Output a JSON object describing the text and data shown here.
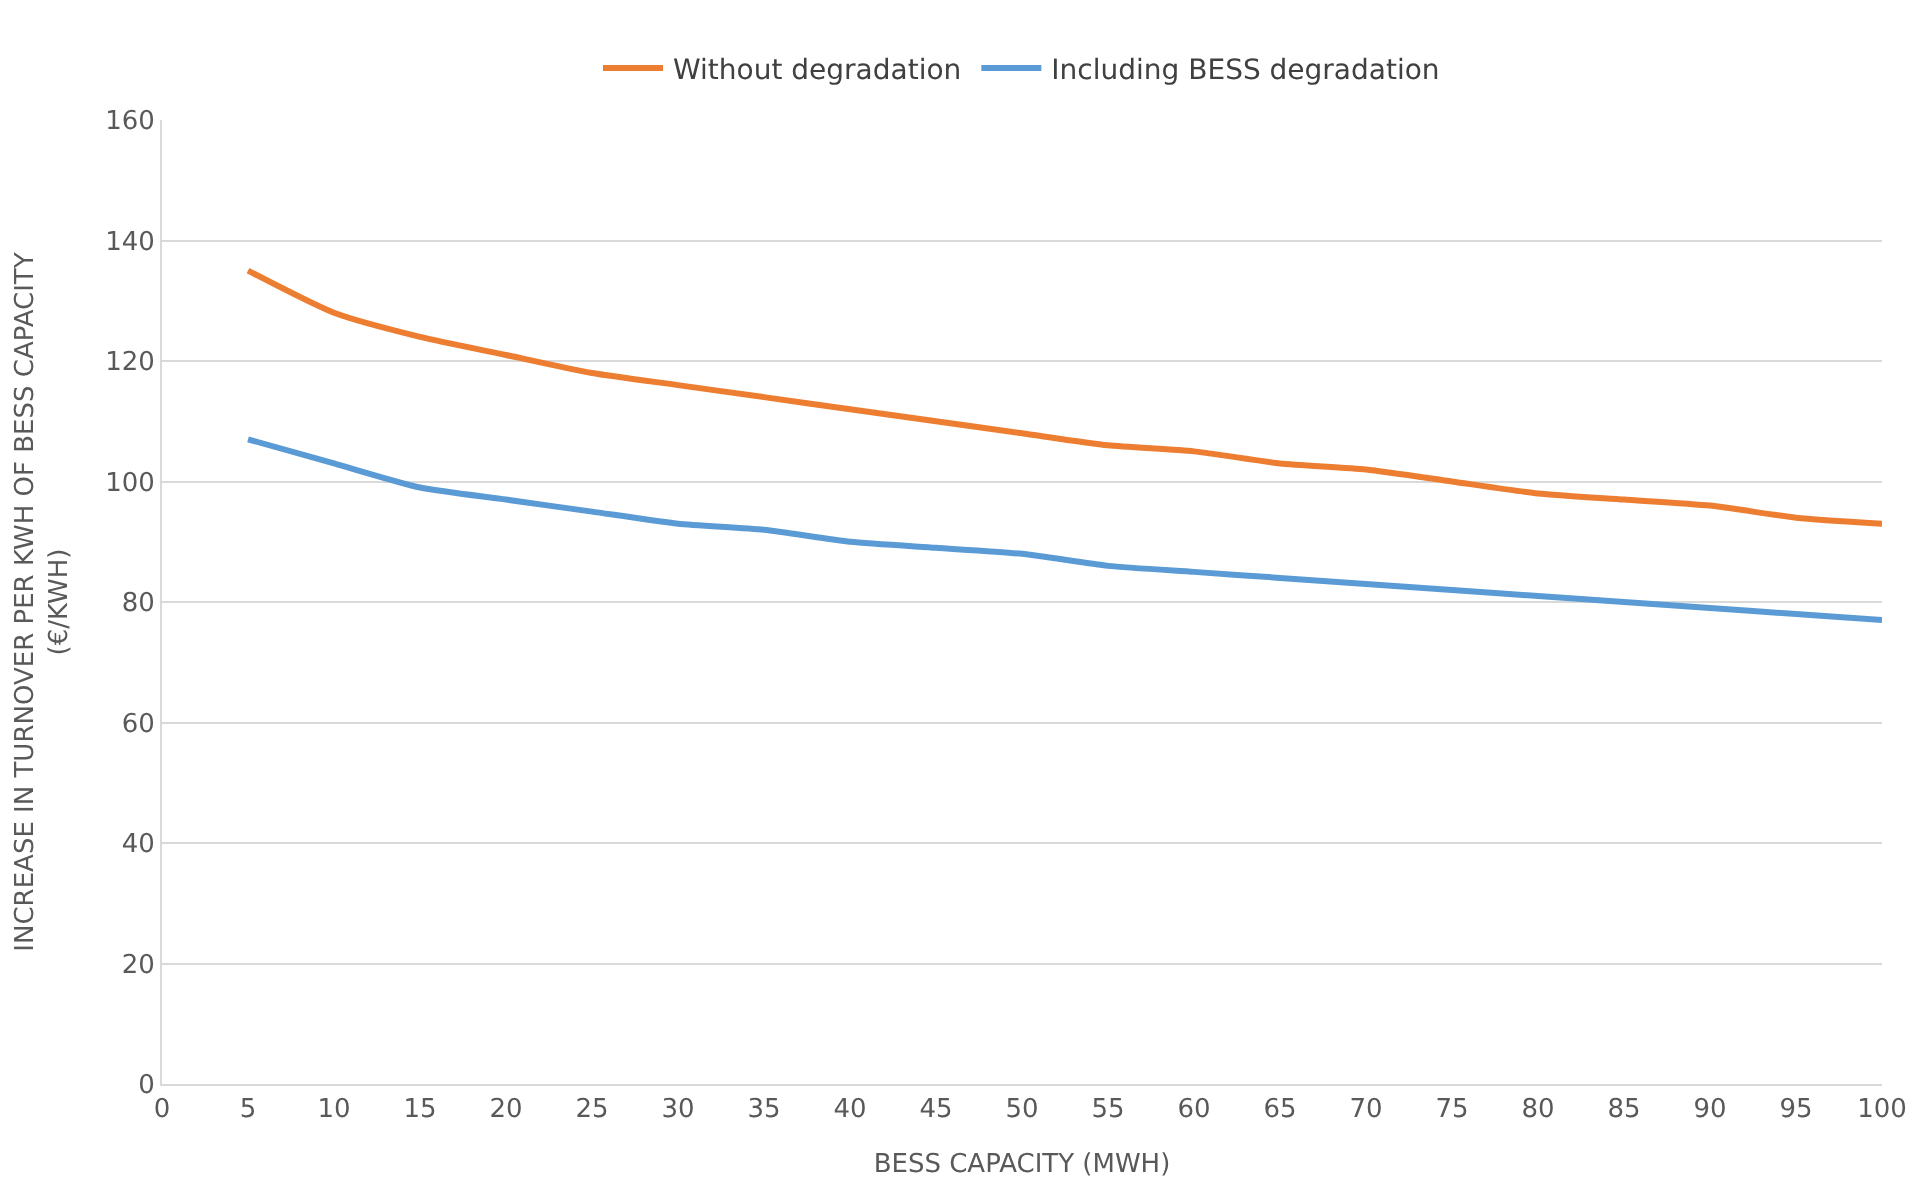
{
  "chart_data": {
    "type": "line",
    "xlabel": "BESS CAPACITY (MWH)",
    "ylabel": "INCREASE IN TURNOVER PER KWH OF BESS CAPACITY\n(€/KWH)",
    "x": [
      5,
      10,
      15,
      20,
      25,
      30,
      35,
      40,
      45,
      50,
      55,
      60,
      65,
      70,
      75,
      80,
      85,
      90,
      95,
      100
    ],
    "series": [
      {
        "name": "Without degradation",
        "color": "#ed7d31",
        "values": [
          135,
          128,
          124,
          121,
          118,
          116,
          114,
          112,
          110,
          108,
          106,
          105,
          103,
          102,
          100,
          98,
          97,
          96,
          94,
          93
        ]
      },
      {
        "name": "Including BESS degradation",
        "color": "#5b9bd5",
        "values": [
          107,
          103,
          99,
          97,
          95,
          93,
          92,
          90,
          89,
          88,
          86,
          85,
          84,
          83,
          82,
          81,
          80,
          79,
          78,
          77
        ]
      }
    ],
    "xlim": [
      0,
      100
    ],
    "xticks": [
      0,
      5,
      10,
      15,
      20,
      25,
      30,
      35,
      40,
      45,
      50,
      55,
      60,
      65,
      70,
      75,
      80,
      85,
      90,
      95,
      100
    ],
    "ylim": [
      0,
      160
    ],
    "yticks": [
      0,
      20,
      40,
      60,
      80,
      100,
      120,
      140,
      160
    ],
    "grid": "y",
    "legend": "top",
    "marker": "none",
    "line_style": "solid"
  }
}
